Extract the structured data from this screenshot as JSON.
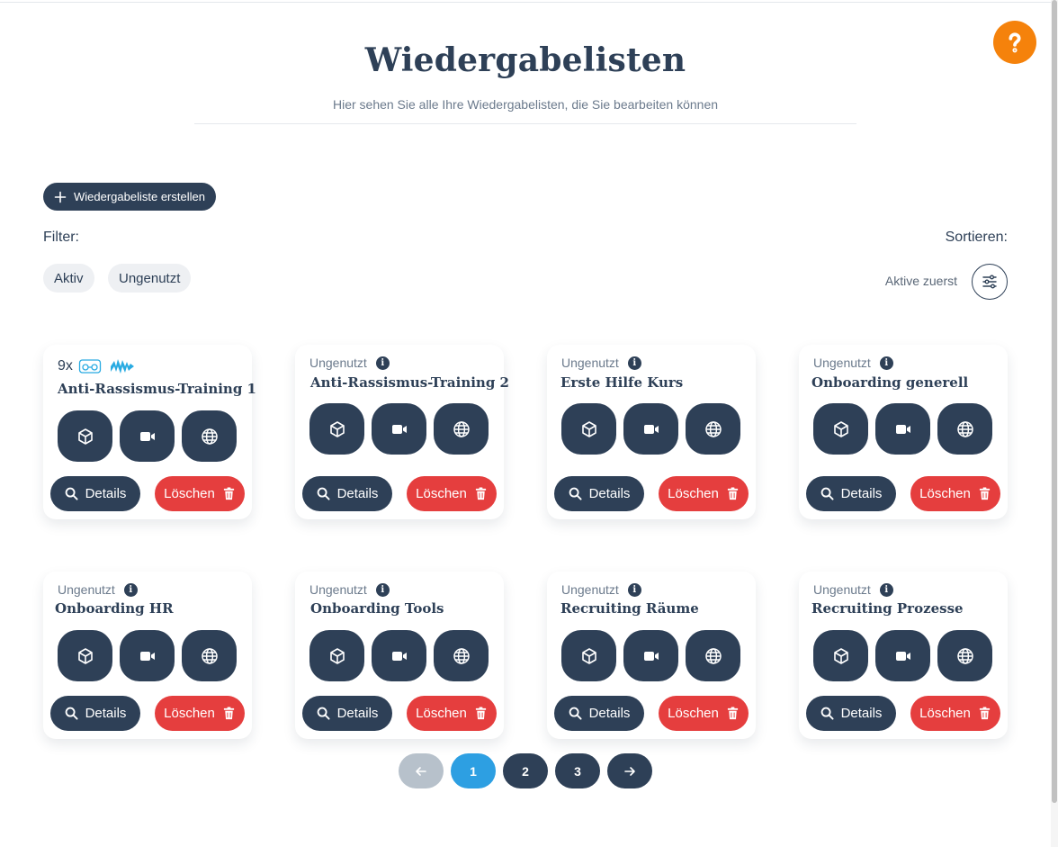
{
  "header": {
    "title": "Wiedergabelisten",
    "subtitle": "Hier sehen Sie alle Ihre Wiedergabelisten, die Sie bearbeiten können",
    "help_label": "?"
  },
  "toolbar": {
    "create_label": "Wiedergabeliste erstellen",
    "filter_label": "Filter:",
    "sort_label": "Sortieren:",
    "filters": [
      "Aktiv",
      "Ungenutzt"
    ],
    "sort_value": "Aktive zuerst"
  },
  "card_actions": {
    "details_label": "Details",
    "delete_label": "Löschen"
  },
  "playlists": [
    {
      "name": "Anti-Rassismus-Training 1",
      "status": "",
      "usage_count": "9x"
    },
    {
      "name": "Anti-Rassismus-Training 2",
      "status": "Ungenutzt"
    },
    {
      "name": "Erste Hilfe Kurs",
      "status": "Ungenutzt"
    },
    {
      "name": "Onboarding generell",
      "status": "Ungenutzt"
    },
    {
      "name": "Onboarding HR",
      "status": "Ungenutzt"
    },
    {
      "name": "Onboarding Tools",
      "status": "Ungenutzt"
    },
    {
      "name": "Recruiting Räume",
      "status": "Ungenutzt"
    },
    {
      "name": "Recruiting Prozesse",
      "status": "Ungenutzt"
    }
  ],
  "pagination": {
    "pages": [
      "1",
      "2",
      "3"
    ],
    "current": "1"
  },
  "colors": {
    "primary": "#2e4057",
    "danger": "#e53e3e",
    "help": "#f5820b",
    "active_page": "#2d9fe2",
    "disabled": "#b7c1cb",
    "accent_blue": "#29abe2"
  }
}
